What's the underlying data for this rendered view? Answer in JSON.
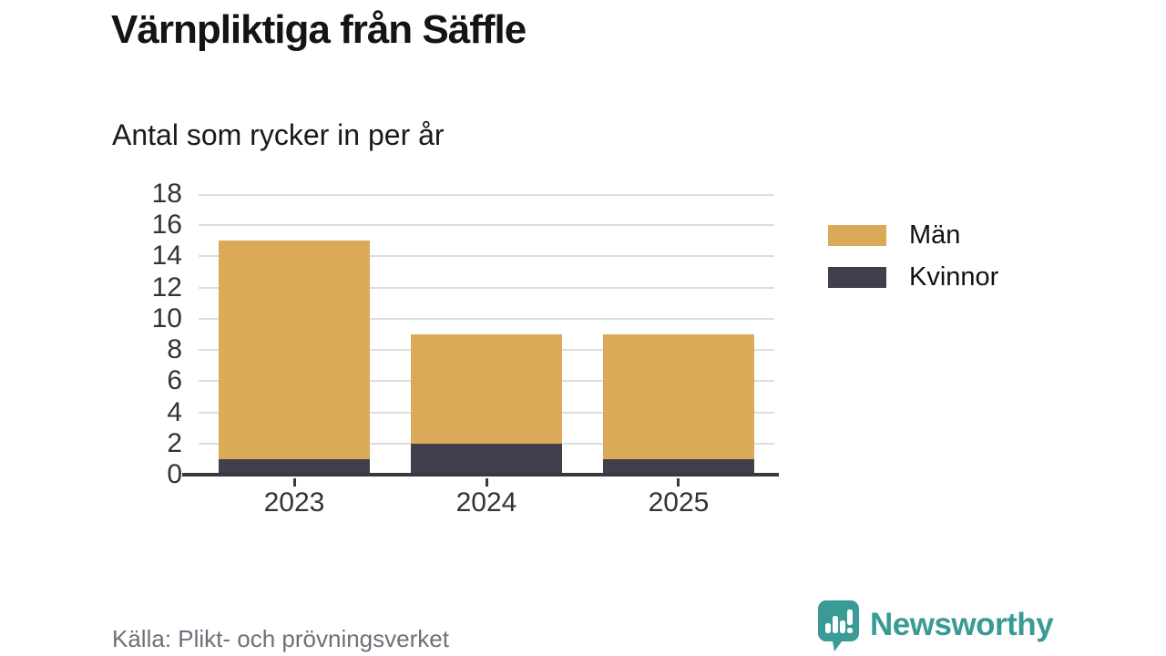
{
  "page": {
    "title": "Värnpliktiga från Säffle",
    "subtitle": "Antal som rycker in per år",
    "source": "Källa: Plikt- och prövningsverket",
    "brand": {
      "name": "Newsworthy",
      "color": "#3a9a95",
      "icon": "newsworthy-speech-bubble-chart-icon"
    }
  },
  "chart_data": {
    "type": "bar",
    "stacked": true,
    "title": "Värnpliktiga från Säffle",
    "subtitle": "Antal som rycker in per år",
    "categories": [
      "2023",
      "2024",
      "2025"
    ],
    "series": [
      {
        "name": "Män",
        "color": "#dbaa58",
        "values": [
          14,
          7,
          8
        ]
      },
      {
        "name": "Kvinnor",
        "color": "#413f4c",
        "values": [
          1,
          2,
          1
        ]
      }
    ],
    "totals": [
      15,
      9,
      9
    ],
    "stack_order_bottom_to_top": [
      "Kvinnor",
      "Män"
    ],
    "xlabel": "",
    "ylabel": "",
    "ylim": [
      0,
      18
    ],
    "yticks": [
      0,
      2,
      4,
      6,
      8,
      10,
      12,
      14,
      16,
      18
    ],
    "grid": "horizontal",
    "grid_color": "#dddddd",
    "axis_color": "#3a383e",
    "tick_label_color": "#333333",
    "legend_position": "right"
  }
}
